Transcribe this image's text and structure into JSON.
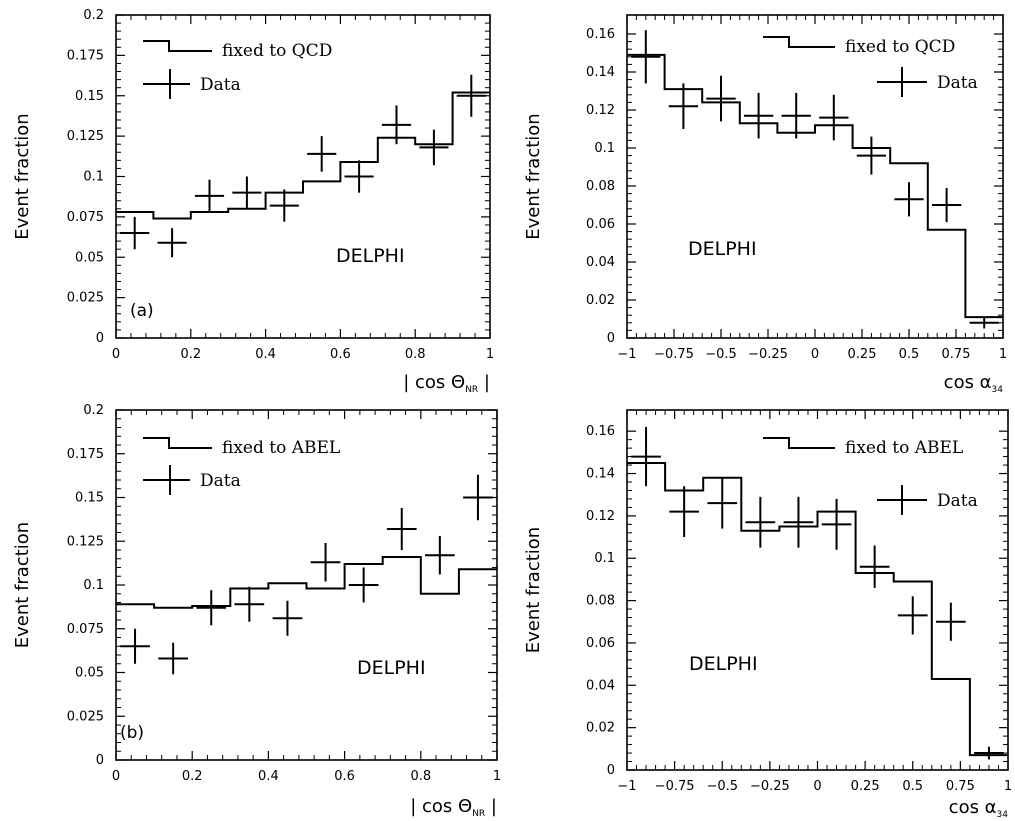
{
  "chart_data": [
    {
      "type": "histogram",
      "panel_tag": "(a)",
      "ylabel": "Event fraction",
      "xlabel": "| cos Θ",
      "xlabel_sub": "NR",
      "xlabel_suffix": " |",
      "xlim": [
        0,
        1
      ],
      "ylim": [
        0,
        0.2
      ],
      "xticks": [
        0,
        0.2,
        0.4,
        0.6,
        0.8,
        1
      ],
      "xtick_labels": [
        "0",
        "0.2",
        "0.4",
        "0.6",
        "0.8",
        "1"
      ],
      "yticks": [
        0,
        0.025,
        0.05,
        0.075,
        0.1,
        0.125,
        0.15,
        0.175,
        0.2
      ],
      "ytick_labels": [
        "0",
        "0.025",
        "0.05",
        "0.075",
        "0.1",
        "0.125",
        "0.15",
        "0.175",
        "0.2"
      ],
      "experiment_label": "DELPHI",
      "bin_edges": [
        0,
        0.1,
        0.2,
        0.3,
        0.4,
        0.5,
        0.6,
        0.7,
        0.8,
        0.9,
        1.0
      ],
      "series": [
        {
          "name": "fixed to QCD",
          "kind": "step",
          "values": [
            0.078,
            0.074,
            0.078,
            0.08,
            0.09,
            0.097,
            0.109,
            0.124,
            0.12,
            0.152
          ]
        },
        {
          "name": "Data",
          "kind": "errorbar",
          "x": [
            0.05,
            0.15,
            0.25,
            0.35,
            0.45,
            0.55,
            0.65,
            0.75,
            0.85,
            0.95
          ],
          "values": [
            0.065,
            0.059,
            0.088,
            0.09,
            0.082,
            0.114,
            0.1,
            0.132,
            0.118,
            0.15
          ],
          "xerr": 0.05,
          "yerr": [
            0.01,
            0.009,
            0.01,
            0.01,
            0.01,
            0.011,
            0.01,
            0.012,
            0.011,
            0.013
          ]
        }
      ]
    },
    {
      "type": "histogram",
      "panel_tag": "",
      "ylabel": "Event fraction",
      "xlabel": "cos α",
      "xlabel_sub": "34",
      "xlabel_suffix": "",
      "xlim": [
        -1,
        1
      ],
      "ylim": [
        0,
        0.17
      ],
      "xticks": [
        -1,
        -0.75,
        -0.5,
        -0.25,
        0,
        0.25,
        0.5,
        0.75,
        1
      ],
      "xtick_labels": [
        "−1",
        "−0.75",
        "−0.5",
        "−0.25",
        "0",
        "0.25",
        "0.5",
        "0.75",
        "1"
      ],
      "yticks": [
        0,
        0.02,
        0.04,
        0.06,
        0.08,
        0.1,
        0.12,
        0.14,
        0.16
      ],
      "ytick_labels": [
        "0",
        "0.02",
        "0.04",
        "0.06",
        "0.08",
        "0.1",
        "0.12",
        "0.14",
        "0.16"
      ],
      "experiment_label": "DELPHI",
      "bin_edges": [
        -1,
        -0.8,
        -0.6,
        -0.4,
        -0.2,
        0,
        0.2,
        0.4,
        0.6,
        0.8,
        1.0
      ],
      "series": [
        {
          "name": "fixed to QCD",
          "kind": "step",
          "values": [
            0.149,
            0.131,
            0.124,
            0.113,
            0.108,
            0.112,
            0.1,
            0.092,
            0.057,
            0.011
          ]
        },
        {
          "name": "Data",
          "kind": "errorbar",
          "x": [
            -0.9,
            -0.7,
            -0.5,
            -0.3,
            -0.1,
            0.1,
            0.3,
            0.5,
            0.7,
            0.9
          ],
          "values": [
            0.148,
            0.122,
            0.126,
            0.117,
            0.117,
            0.116,
            0.096,
            0.073,
            0.07,
            0.008
          ],
          "xerr": 0.1,
          "yerr": [
            0.014,
            0.012,
            0.012,
            0.012,
            0.012,
            0.012,
            0.01,
            0.009,
            0.009,
            0.003
          ]
        }
      ]
    },
    {
      "type": "histogram",
      "panel_tag": "(b)",
      "ylabel": "Event fraction",
      "xlabel": "| cos Θ",
      "xlabel_sub": "NR",
      "xlabel_suffix": " |",
      "xlim": [
        0,
        1
      ],
      "ylim": [
        0,
        0.2
      ],
      "xticks": [
        0,
        0.2,
        0.4,
        0.6,
        0.8,
        1
      ],
      "xtick_labels": [
        "0",
        "0.2",
        "0.4",
        "0.6",
        "0.8",
        "1"
      ],
      "yticks": [
        0,
        0.025,
        0.05,
        0.075,
        0.1,
        0.125,
        0.15,
        0.175,
        0.2
      ],
      "ytick_labels": [
        "0",
        "0.025",
        "0.05",
        "0.075",
        "0.1",
        "0.125",
        "0.15",
        "0.175",
        "0.2"
      ],
      "experiment_label": "DELPHI",
      "bin_edges": [
        0,
        0.1,
        0.2,
        0.3,
        0.4,
        0.5,
        0.6,
        0.7,
        0.8,
        0.9,
        1.0
      ],
      "series": [
        {
          "name": "fixed to ABEL",
          "kind": "step",
          "values": [
            0.089,
            0.087,
            0.088,
            0.098,
            0.101,
            0.098,
            0.112,
            0.116,
            0.095,
            0.109
          ]
        },
        {
          "name": "Data",
          "kind": "errorbar",
          "x": [
            0.05,
            0.15,
            0.25,
            0.35,
            0.45,
            0.55,
            0.65,
            0.75,
            0.85,
            0.95
          ],
          "values": [
            0.065,
            0.058,
            0.087,
            0.089,
            0.081,
            0.113,
            0.1,
            0.132,
            0.117,
            0.15
          ],
          "xerr": 0.05,
          "yerr": [
            0.01,
            0.009,
            0.01,
            0.01,
            0.01,
            0.011,
            0.01,
            0.012,
            0.011,
            0.013
          ]
        }
      ]
    },
    {
      "type": "histogram",
      "panel_tag": "",
      "ylabel": "Event fraction",
      "xlabel": "cos α",
      "xlabel_sub": "34",
      "xlabel_suffix": "",
      "xlim": [
        -1,
        1
      ],
      "ylim": [
        0,
        0.17
      ],
      "xticks": [
        -1,
        -0.75,
        -0.5,
        -0.25,
        0,
        0.25,
        0.5,
        0.75,
        1
      ],
      "xtick_labels": [
        "−1",
        "−0.75",
        "−0.5",
        "−0.25",
        "0",
        "0.25",
        "0.5",
        "0.75",
        "1"
      ],
      "yticks": [
        0,
        0.02,
        0.04,
        0.06,
        0.08,
        0.1,
        0.12,
        0.14,
        0.16
      ],
      "ytick_labels": [
        "0",
        "0.02",
        "0.04",
        "0.06",
        "0.08",
        "0.1",
        "0.12",
        "0.14",
        "0.16"
      ],
      "experiment_label": "DELPHI",
      "bin_edges": [
        -1,
        -0.8,
        -0.6,
        -0.4,
        -0.2,
        0,
        0.2,
        0.4,
        0.6,
        0.8,
        1.0
      ],
      "series": [
        {
          "name": "fixed to ABEL",
          "kind": "step",
          "values": [
            0.145,
            0.132,
            0.138,
            0.113,
            0.115,
            0.122,
            0.093,
            0.089,
            0.043,
            0.007
          ]
        },
        {
          "name": "Data",
          "kind": "errorbar",
          "x": [
            -0.9,
            -0.7,
            -0.5,
            -0.3,
            -0.1,
            0.1,
            0.3,
            0.5,
            0.7,
            0.9
          ],
          "values": [
            0.148,
            0.122,
            0.126,
            0.117,
            0.117,
            0.116,
            0.096,
            0.073,
            0.07,
            0.008
          ],
          "xerr": 0.1,
          "yerr": [
            0.014,
            0.012,
            0.012,
            0.012,
            0.012,
            0.012,
            0.01,
            0.009,
            0.009,
            0.003
          ]
        }
      ]
    }
  ]
}
